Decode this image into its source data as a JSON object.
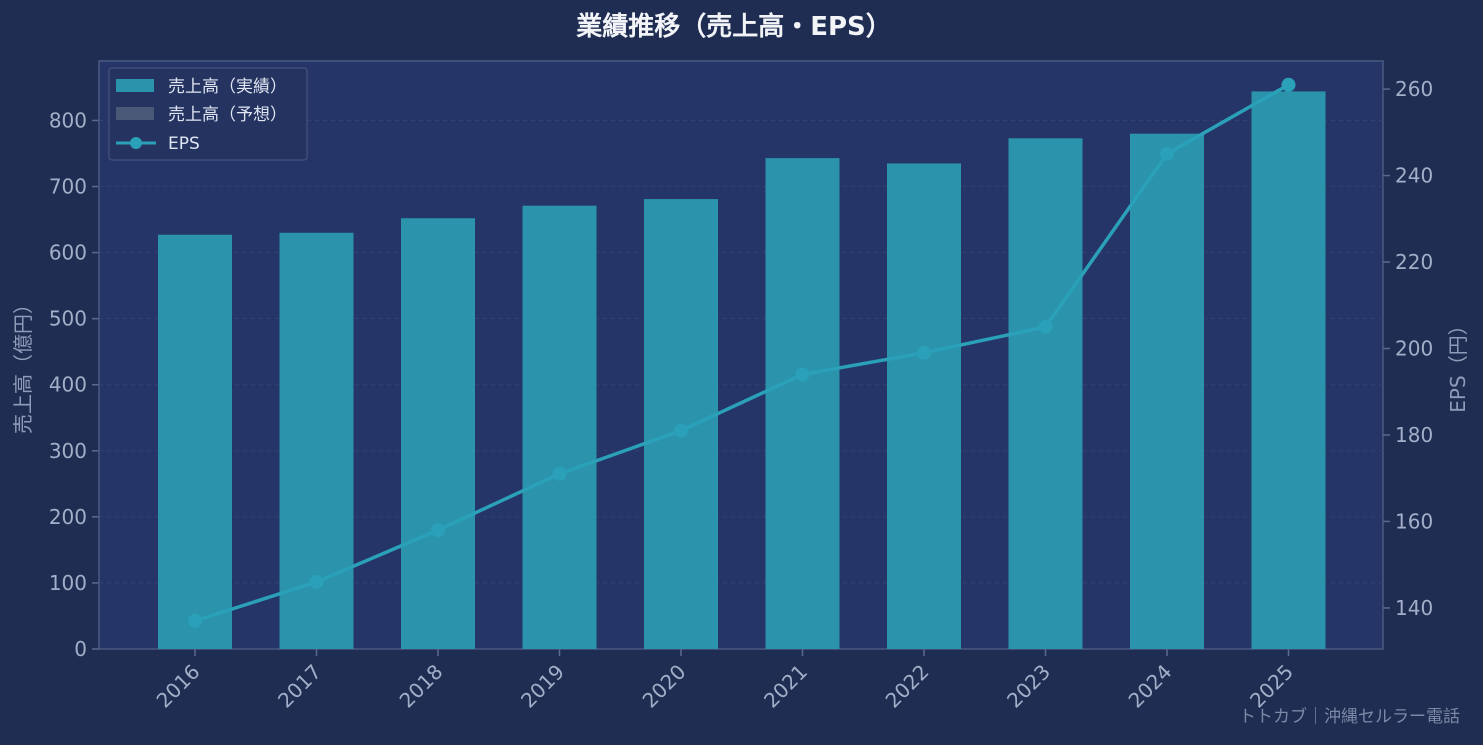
{
  "chart_data": {
    "type": "bar",
    "title": "業績推移（売上高・EPS）",
    "categories": [
      "2016",
      "2017",
      "2018",
      "2019",
      "2020",
      "2021",
      "2022",
      "2023",
      "2024",
      "2025"
    ],
    "series": [
      {
        "name": "売上高（実績）",
        "type": "bar",
        "axis": "left",
        "values": [
          627,
          630,
          652,
          671,
          681,
          743,
          735,
          773,
          780,
          844
        ]
      },
      {
        "name": "EPS",
        "type": "line",
        "axis": "right",
        "values": [
          137,
          146,
          158,
          171,
          181,
          194,
          199,
          205,
          245,
          261
        ]
      }
    ],
    "legend_entries": [
      "売上高（実績）",
      "売上高（予想）",
      "EPS"
    ],
    "legend_position": "top-left",
    "ylabel": "売上高（億円）",
    "y2label": "EPS（円）",
    "ylim": [
      0,
      890
    ],
    "y2lim": [
      130.5,
      266.5
    ],
    "yticks": [
      0,
      100,
      200,
      300,
      400,
      500,
      600,
      700,
      800
    ],
    "y2ticks": [
      140,
      160,
      180,
      200,
      220,
      240,
      260
    ],
    "grid": true,
    "watermark": "トトカブ｜沖縄セルラー電話"
  },
  "colors": {
    "background": "#1f2d52",
    "plot_background": "#253567",
    "bar_actual": "#2b94ac",
    "bar_forecast": "#4a5878",
    "eps_line": "#2aa0b9",
    "axis": "#5b6a8c",
    "grid": "#33436f"
  }
}
